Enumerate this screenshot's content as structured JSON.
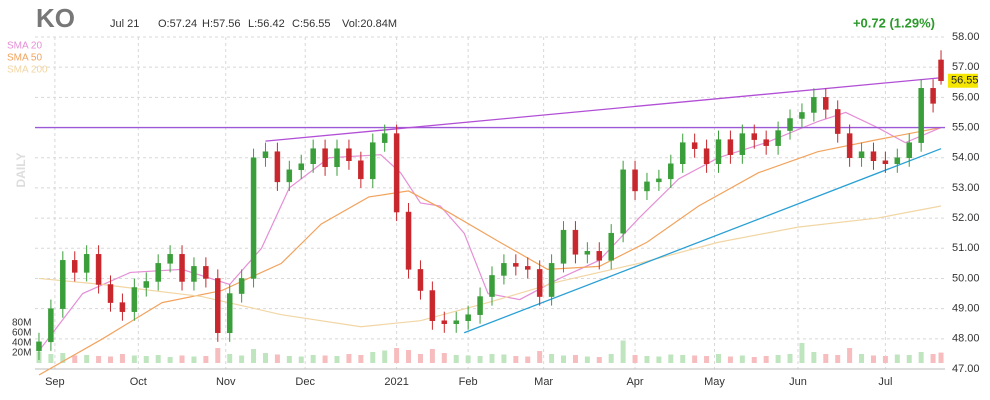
{
  "chart_data": {
    "type": "candlestick",
    "title": "KO",
    "date": "Jul 21",
    "ohlc_labels": [
      "O:57.24",
      "H:57.56",
      "L:56.42",
      "C:56.55"
    ],
    "volume_label": "Vol:20.84M",
    "change_label": "+0.72 (1.29%)",
    "watermark": "DAILY",
    "up_color": "#3a9e3a",
    "down_color": "#c8282d",
    "volume_up_color": "#bfe5bf",
    "volume_down_color": "#f6bcbe",
    "xlim": [
      -1,
      228
    ],
    "ylim": [
      47,
      58
    ],
    "yticks": [
      {
        "value": 47,
        "label": "47.00"
      },
      {
        "value": 48,
        "label": "48.00"
      },
      {
        "value": 49,
        "label": "49.00"
      },
      {
        "value": 50,
        "label": "50.00"
      },
      {
        "value": 51,
        "label": "51.00"
      },
      {
        "value": 52,
        "label": "52.00"
      },
      {
        "value": 53,
        "label": "53.00"
      },
      {
        "value": 54,
        "label": "54.00"
      },
      {
        "value": 55,
        "label": "55.00"
      },
      {
        "value": 56,
        "label": "56.00"
      },
      {
        "value": 57,
        "label": "57.00"
      },
      {
        "value": 58,
        "label": "58.00"
      }
    ],
    "volume_ylim": [
      0,
      180
    ],
    "volume_ticks": [
      {
        "value": 20,
        "label": "20M"
      },
      {
        "value": 40,
        "label": "40M"
      },
      {
        "value": 60,
        "label": "60M"
      },
      {
        "value": 80,
        "label": "80M"
      }
    ],
    "xticks": [
      {
        "value": 4,
        "label": "Sep"
      },
      {
        "value": 25,
        "label": "Oct"
      },
      {
        "value": 47,
        "label": "Nov"
      },
      {
        "value": 67,
        "label": "Dec"
      },
      {
        "value": 90,
        "label": "2021"
      },
      {
        "value": 108,
        "label": "Feb"
      },
      {
        "value": 127,
        "label": "Mar"
      },
      {
        "value": 150,
        "label": "Apr"
      },
      {
        "value": 170,
        "label": "May"
      },
      {
        "value": 191,
        "label": "Jun"
      },
      {
        "value": 213,
        "label": "Jul"
      }
    ],
    "grid": true,
    "candles": {
      "x": [
        0,
        3,
        6,
        9,
        12,
        15,
        18,
        21,
        24,
        27,
        30,
        33,
        36,
        39,
        42,
        45,
        48,
        51,
        54,
        57,
        60,
        63,
        66,
        69,
        72,
        75,
        78,
        81,
        84,
        87,
        90,
        93,
        96,
        99,
        102,
        105,
        108,
        111,
        114,
        117,
        120,
        123,
        126,
        129,
        132,
        135,
        138,
        141,
        144,
        147,
        150,
        153,
        156,
        159,
        162,
        165,
        168,
        171,
        174,
        177,
        180,
        183,
        186,
        189,
        192,
        195,
        198,
        201,
        204,
        207,
        210,
        213,
        216,
        219,
        222,
        225,
        227
      ],
      "open": [
        47.6,
        47.9,
        49.0,
        50.6,
        50.2,
        50.8,
        49.8,
        49.2,
        48.9,
        49.7,
        49.9,
        50.5,
        50.8,
        49.9,
        50.4,
        50.0,
        48.2,
        49.5,
        50.0,
        54.0,
        54.2,
        53.2,
        53.6,
        53.8,
        54.3,
        53.7,
        54.3,
        53.9,
        53.3,
        54.5,
        54.8,
        52.2,
        50.3,
        49.6,
        48.6,
        48.5,
        48.6,
        48.8,
        49.4,
        50.1,
        50.5,
        50.4,
        50.3,
        49.4,
        50.5,
        51.6,
        50.8,
        50.9,
        50.6,
        51.5,
        53.6,
        52.9,
        53.2,
        53.3,
        53.8,
        54.5,
        54.3,
        53.8,
        54.6,
        54.1,
        54.8,
        54.6,
        54.4,
        54.9,
        55.3,
        55.5,
        56.0,
        55.6,
        54.8,
        54.0,
        54.2,
        53.9,
        53.8,
        54.0,
        54.5,
        56.3,
        57.24
      ],
      "high": [
        48.2,
        49.3,
        50.9,
        50.9,
        51.1,
        51.1,
        50.1,
        49.5,
        50.0,
        50.2,
        50.8,
        51.1,
        51.1,
        50.7,
        50.7,
        50.3,
        49.8,
        50.3,
        54.3,
        54.5,
        54.5,
        53.9,
        54.1,
        54.6,
        54.6,
        54.6,
        54.6,
        54.2,
        54.8,
        55.1,
        55.1,
        52.5,
        50.6,
        49.9,
        48.9,
        48.9,
        49.1,
        49.7,
        50.4,
        50.8,
        50.8,
        50.7,
        50.6,
        50.8,
        51.9,
        51.9,
        51.2,
        51.2,
        51.8,
        53.9,
        53.9,
        53.5,
        53.6,
        54.1,
        54.8,
        54.8,
        54.6,
        54.9,
        54.9,
        55.1,
        55.1,
        54.9,
        55.2,
        55.6,
        55.8,
        56.3,
        56.3,
        55.9,
        55.1,
        54.5,
        54.5,
        54.2,
        54.3,
        54.8,
        56.6,
        56.6,
        57.56
      ],
      "low": [
        47.3,
        47.6,
        48.7,
        49.9,
        49.9,
        49.5,
        48.9,
        48.6,
        48.6,
        49.4,
        49.6,
        50.2,
        49.6,
        49.6,
        49.7,
        47.9,
        47.9,
        49.2,
        49.7,
        53.7,
        52.9,
        52.9,
        53.3,
        53.5,
        53.4,
        53.4,
        53.6,
        53.0,
        53.0,
        54.2,
        51.9,
        50.0,
        49.3,
        48.3,
        48.2,
        48.2,
        48.3,
        48.5,
        49.1,
        49.8,
        50.1,
        50.0,
        49.1,
        49.1,
        50.2,
        50.5,
        50.5,
        50.3,
        50.3,
        51.2,
        52.6,
        52.6,
        52.9,
        53.0,
        53.5,
        54.0,
        53.5,
        53.5,
        53.8,
        53.8,
        54.3,
        54.1,
        54.1,
        54.6,
        55.0,
        55.2,
        55.3,
        54.5,
        53.7,
        53.7,
        53.6,
        53.5,
        53.5,
        53.7,
        54.2,
        55.5,
        56.42
      ],
      "close": [
        47.9,
        49.0,
        50.6,
        50.2,
        50.8,
        49.8,
        49.2,
        48.9,
        49.7,
        49.9,
        50.5,
        50.8,
        49.9,
        50.4,
        50.0,
        48.2,
        49.5,
        50.0,
        54.0,
        54.2,
        53.2,
        53.6,
        53.8,
        54.3,
        53.7,
        54.3,
        53.9,
        53.3,
        54.5,
        54.8,
        52.2,
        50.3,
        49.6,
        48.6,
        48.5,
        48.6,
        48.8,
        49.4,
        50.1,
        50.5,
        50.4,
        50.3,
        49.4,
        50.5,
        51.6,
        50.8,
        50.9,
        50.6,
        51.5,
        53.6,
        52.9,
        53.2,
        53.3,
        53.8,
        54.5,
        54.3,
        53.8,
        54.6,
        54.1,
        54.8,
        54.6,
        54.4,
        54.9,
        55.3,
        55.5,
        56.0,
        55.6,
        54.8,
        54.0,
        54.2,
        53.9,
        53.8,
        54.0,
        54.5,
        56.3,
        55.8,
        56.55
      ],
      "volume": [
        22,
        18,
        20,
        15,
        16,
        14,
        13,
        18,
        15,
        14,
        16,
        12,
        15,
        13,
        14,
        30,
        18,
        15,
        28,
        20,
        17,
        14,
        13,
        16,
        15,
        14,
        18,
        16,
        22,
        25,
        30,
        26,
        18,
        28,
        20,
        16,
        15,
        14,
        18,
        17,
        14,
        13,
        24,
        18,
        15,
        16,
        13,
        12,
        18,
        45,
        16,
        14,
        13,
        17,
        16,
        15,
        14,
        18,
        13,
        15,
        12,
        14,
        16,
        18,
        40,
        22,
        18,
        16,
        30,
        18,
        15,
        14,
        17,
        16,
        22,
        18,
        20.84
      ]
    },
    "sma": [
      {
        "name": "SMA 20",
        "color": "#e58fd6",
        "x": [
          0,
          11,
          23,
          36,
          48,
          56,
          63,
          73,
          86,
          91,
          96,
          101,
          107,
          113,
          121,
          131,
          141,
          151,
          161,
          171,
          183,
          196,
          203,
          211,
          218,
          227
        ],
        "values": [
          47.6,
          49.5,
          50.2,
          50.3,
          49.8,
          51.0,
          53.0,
          54.0,
          54.1,
          53.5,
          52.5,
          52.4,
          51.5,
          49.5,
          49.3,
          50.0,
          50.6,
          52.0,
          53.3,
          54.0,
          54.5,
          55.2,
          55.5,
          55.0,
          54.5,
          55.0
        ]
      },
      {
        "name": "SMA 50",
        "color": "#f2a35e",
        "x": [
          0,
          16,
          31,
          46,
          61,
          71,
          83,
          93,
          103,
          116,
          128,
          141,
          153,
          166,
          181,
          196,
          211,
          227
        ],
        "values": [
          46.8,
          48.0,
          49.2,
          49.6,
          50.5,
          51.8,
          52.7,
          52.9,
          52.2,
          51.2,
          50.3,
          50.4,
          51.2,
          52.4,
          53.5,
          54.2,
          54.6,
          55.0
        ]
      },
      {
        "name": "SMA 200",
        "color": "#f1d6a4",
        "x": [
          0,
          16,
          41,
          61,
          81,
          96,
          113,
          131,
          151,
          171,
          191,
          211,
          227
        ],
        "values": [
          50.0,
          49.8,
          49.4,
          48.8,
          48.4,
          48.6,
          49.2,
          49.9,
          50.5,
          51.2,
          51.7,
          52.0,
          52.4
        ]
      }
    ],
    "trendlines": [
      {
        "color": "#9b59d6",
        "x": [
          -1,
          228
        ],
        "y": [
          55.0,
          55.0
        ]
      },
      {
        "color": "#b24fd6",
        "x": [
          57,
          227
        ],
        "y": [
          54.55,
          56.65
        ]
      },
      {
        "color": "#2aa0d4",
        "x": [
          107,
          227
        ],
        "y": [
          48.2,
          54.3
        ]
      }
    ]
  }
}
